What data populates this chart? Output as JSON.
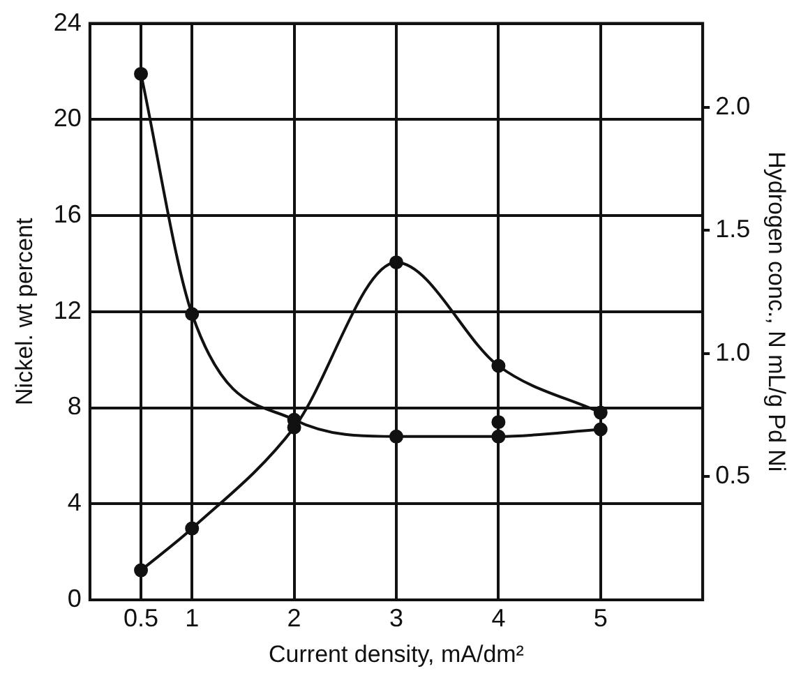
{
  "chart_data": {
    "type": "line",
    "xlabel": "Current density, mA/dm²",
    "ylabel": "Nickel. wt percent",
    "y2label": "Hydrogen conc., N mL/g Pd Ni",
    "x": [
      0.5,
      1,
      2,
      3,
      4,
      5
    ],
    "series": [
      {
        "color": "#111111",
        "values": [
          21.9,
          11.9,
          7.5,
          6.8,
          6.8,
          7.1
        ]
      },
      {
        "color": "#111111",
        "axis": "y2",
        "values": [
          0.12,
          0.29,
          0.7,
          1.37,
          0.95,
          0.76
        ]
      },
      {
        "color": "#111111",
        "type": "scatter",
        "x": [
          4
        ],
        "values": [
          7.4
        ]
      }
    ],
    "xlim": [
      0,
      6
    ],
    "xticks": [
      0.5,
      1,
      2,
      3,
      4,
      5
    ],
    "ylim": [
      0,
      24
    ],
    "yticks": [
      0,
      4,
      8,
      12,
      16,
      20,
      24
    ],
    "y2lim": [
      0,
      2.34
    ],
    "y2ticks": [
      0.5,
      {
        "value": 1,
        "label": "1.0"
      },
      1.5,
      {
        "value": 2,
        "label": "2.0"
      }
    ],
    "grid": true,
    "legend": false,
    "marker": "circle",
    "line_style": "solid"
  }
}
